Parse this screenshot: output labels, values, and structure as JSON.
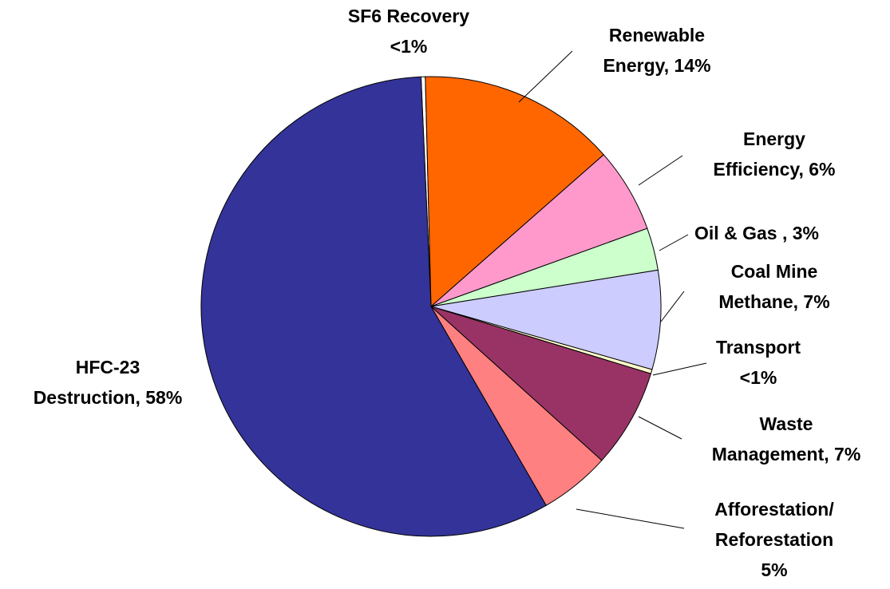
{
  "chart_data": {
    "type": "pie",
    "labels": [
      [
        "SF6 Recovery",
        "<1%"
      ],
      [
        "Renewable",
        "Energy, 14%"
      ],
      [
        "Energy",
        "Efficiency, 6%"
      ],
      [
        "Oil & Gas , 3%"
      ],
      [
        "Coal Mine",
        "Methane, 7%"
      ],
      [
        "Transport",
        "<1%"
      ],
      [
        "Waste",
        "Management, 7%"
      ],
      [
        "Afforestation/",
        "Reforestation",
        "5%"
      ],
      [
        "HFC-23",
        "Destruction, 58%"
      ]
    ],
    "values": [
      0.3,
      14,
      6,
      3,
      7,
      0.3,
      7,
      5,
      58
    ],
    "colors": [
      "#ffffff",
      "#ff6600",
      "#ff99cc",
      "#ccffcc",
      "#ccccff",
      "#ffffcc",
      "#993366",
      "#ff8080",
      "#333399"
    ]
  }
}
